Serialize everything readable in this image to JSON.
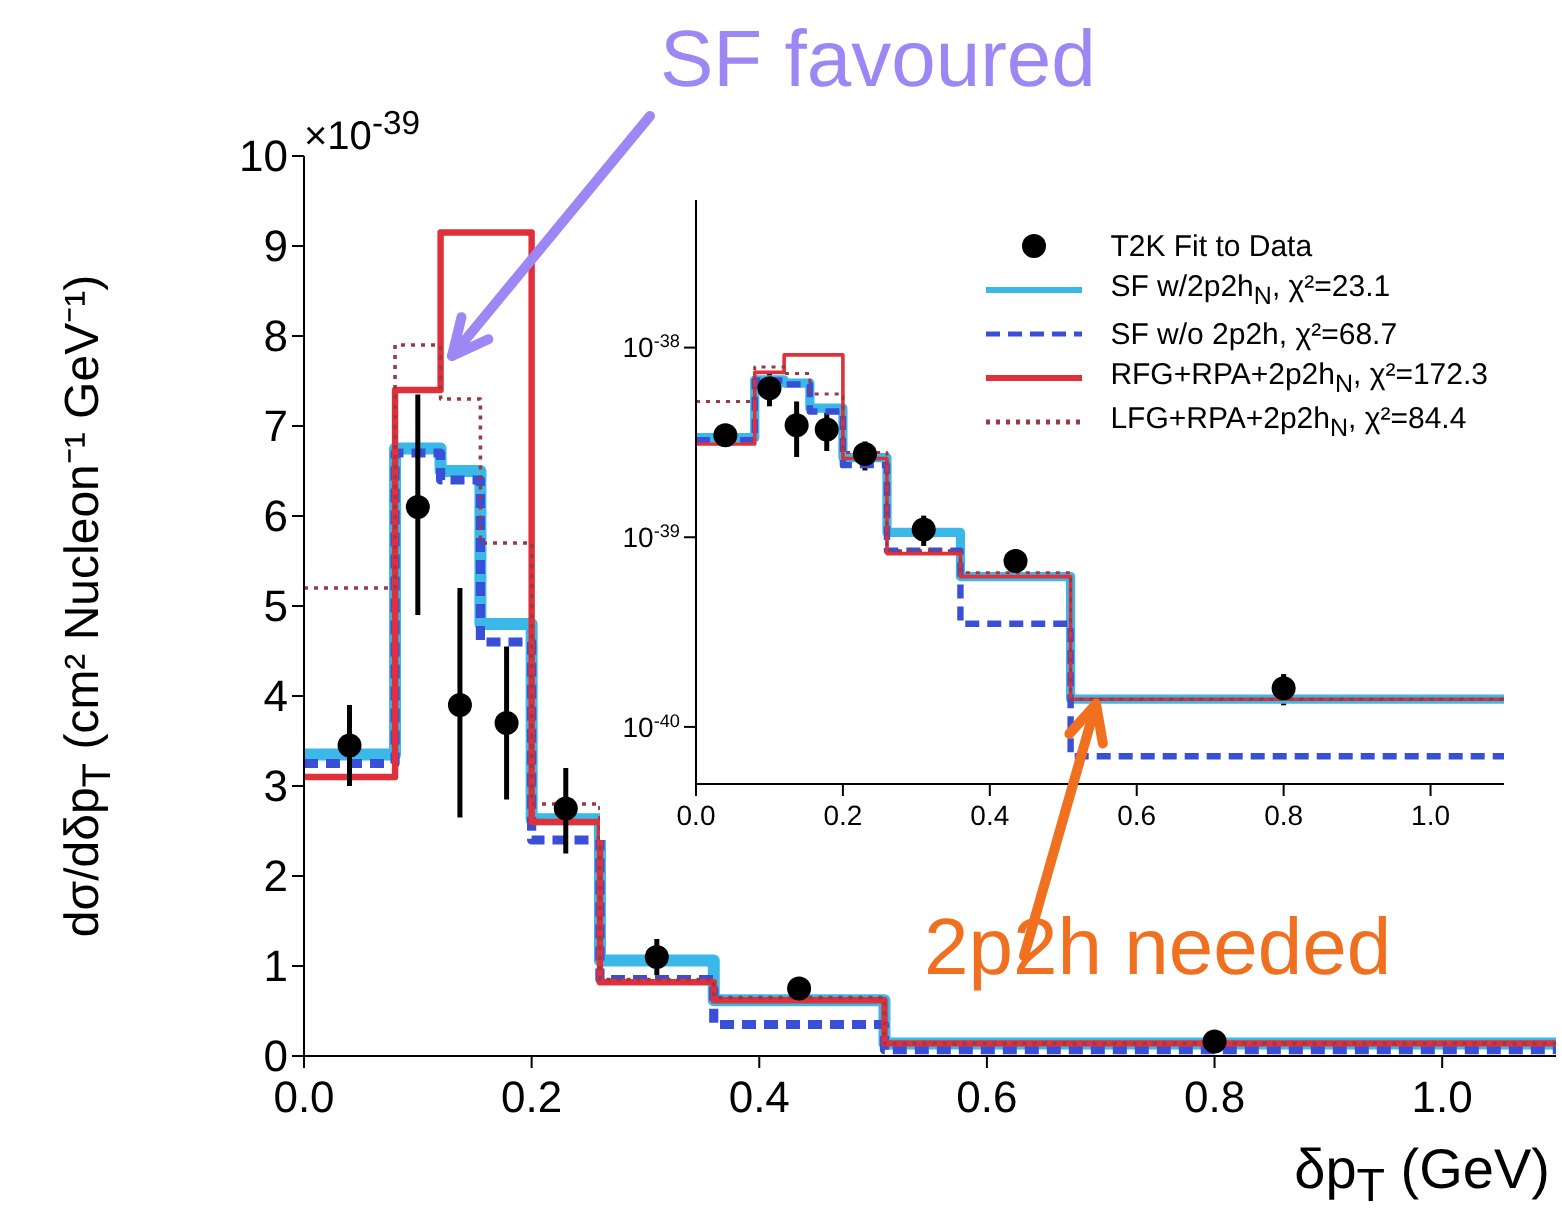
{
  "chart_data": [
    {
      "type": "step",
      "xlabel": "δp$_{T}$ (GeV)",
      "ylabel": "dσ/dδp$_{T}$ (cm² Nucleon⁻¹ GeV⁻¹)",
      "xlim": [
        0,
        1.1
      ],
      "xticks": [
        {
          "value": 0,
          "label": "0.0"
        },
        {
          "value": 0.2,
          "label": "0.2"
        },
        {
          "value": 0.4,
          "label": "0.4"
        },
        {
          "value": 0.6,
          "label": "0.6"
        },
        {
          "value": 0.8,
          "label": "0.8"
        },
        {
          "value": 1.0,
          "label": "1.0"
        }
      ],
      "ylim": [
        0,
        10
      ],
      "yticks": [
        0,
        1,
        2,
        3,
        4,
        5,
        6,
        7,
        8,
        9,
        10
      ],
      "annotations": [
        "×10$^{-39}$",
        "SF favoured",
        "2p2h needed"
      ],
      "series": [
        {
          "color": "#3ab8e8",
          "line_style": "solid",
          "x": [
            0,
            0.08,
            0.12,
            0.155,
            0.2,
            0.26,
            0.36,
            0.51,
            1.1
          ],
          "values": [
            3.35,
            6.75,
            6.5,
            4.8,
            2.63,
            1.06,
            0.62,
            0.14,
            0.14
          ]
        },
        {
          "color": "#3a4fd8",
          "line_style": "dashed",
          "x": [
            0,
            0.08,
            0.12,
            0.155,
            0.2,
            0.26,
            0.36,
            0.51,
            1.1
          ],
          "values": [
            3.25,
            6.7,
            6.4,
            4.6,
            2.4,
            0.85,
            0.35,
            0.07,
            0.07
          ]
        },
        {
          "color": "#e0303a",
          "line_style": "solid",
          "x": [
            0,
            0.08,
            0.12,
            0.155,
            0.2,
            0.26,
            0.36,
            0.51,
            1.1
          ],
          "values": [
            3.1,
            7.4,
            9.15,
            9.15,
            2.6,
            0.82,
            0.62,
            0.14,
            0.14
          ]
        },
        {
          "color": "#9a3a44",
          "line_style": "dotted",
          "x": [
            0,
            0.08,
            0.12,
            0.155,
            0.2,
            0.26,
            0.36,
            0.51,
            1.1
          ],
          "values": [
            5.2,
            7.9,
            7.3,
            5.7,
            2.8,
            0.85,
            0.65,
            0.14,
            0.14
          ]
        },
        {
          "type": "scatter",
          "color": "#000000",
          "marker": "circle",
          "x": [
            0.04,
            0.1,
            0.137,
            0.178,
            0.23,
            0.31,
            0.435,
            0.8
          ],
          "values": [
            3.45,
            6.1,
            3.9,
            3.7,
            2.75,
            1.1,
            0.75,
            0.16
          ],
          "errors": [
            [
              3.0,
              3.9
            ],
            [
              4.9,
              7.35
            ],
            [
              2.65,
              5.2
            ],
            [
              2.85,
              4.55
            ],
            [
              2.25,
              3.2
            ],
            [
              0.9,
              1.3
            ],
            [
              0.65,
              0.85
            ],
            [
              0.11,
              0.21
            ]
          ]
        }
      ]
    },
    {
      "type": "step",
      "log": true,
      "legend": "top right",
      "xlim": [
        0,
        1.1
      ],
      "xticks": [
        {
          "value": 0,
          "label": "0.0"
        },
        {
          "value": 0.2,
          "label": "0.2"
        },
        {
          "value": 0.4,
          "label": "0.4"
        },
        {
          "value": 0.6,
          "label": "0.6"
        },
        {
          "value": 0.8,
          "label": "0.8"
        },
        {
          "value": 1.0,
          "label": "1.0"
        }
      ],
      "ylim": [
        5e-41,
        6e-38
      ],
      "yticks": [
        {
          "value": 1e-40,
          "label": "10$^{-40}$"
        },
        {
          "value": 1e-39,
          "label": "10$^{-39}$"
        },
        {
          "value": 1e-38,
          "label": "10$^{-38}$"
        }
      ],
      "series": [
        {
          "type": "scatter",
          "name": "T2K Fit to Data",
          "color": "#000000",
          "marker": "circle",
          "x": [
            0.04,
            0.1,
            0.137,
            0.178,
            0.23,
            0.31,
            0.435,
            0.8
          ],
          "values": [
            3.45e-39,
            6.1e-39,
            3.9e-39,
            3.7e-39,
            2.75e-39,
            1.1e-39,
            7.5e-40,
            1.6e-40
          ],
          "errors": [
            [
              3e-39,
              3.9e-39
            ],
            [
              4.9e-39,
              7.35e-39
            ],
            [
              2.65e-39,
              5.2e-39
            ],
            [
              2.85e-39,
              4.55e-39
            ],
            [
              2.25e-39,
              3.2e-39
            ],
            [
              9e-40,
              1.3e-39
            ],
            [
              6.5e-40,
              8.5e-40
            ],
            [
              1.3e-40,
              1.9e-40
            ]
          ]
        },
        {
          "name": "SF w/2p2h$_{N}$, χ²=23.1",
          "color": "#3ab8e8",
          "line_style": "solid",
          "x": [
            0,
            0.08,
            0.12,
            0.155,
            0.2,
            0.26,
            0.36,
            0.51,
            1.1
          ],
          "values": [
            3.35e-39,
            6.75e-39,
            6.5e-39,
            4.8e-39,
            2.63e-39,
            1.06e-39,
            6.2e-40,
            1.4e-40,
            1.4e-40
          ]
        },
        {
          "name": "SF w/o 2p2h, χ²=68.7",
          "color": "#3a4fd8",
          "line_style": "dashed",
          "x": [
            0,
            0.08,
            0.12,
            0.155,
            0.2,
            0.26,
            0.36,
            0.51,
            1.1
          ],
          "values": [
            3.25e-39,
            6.7e-39,
            6.4e-39,
            4.6e-39,
            2.4e-39,
            8.5e-40,
            3.5e-40,
            7e-41,
            7e-41
          ]
        },
        {
          "name": "RFG+RPA+2p2h$_{N}$, χ²=172.3",
          "color": "#e0303a",
          "line_style": "solid",
          "x": [
            0,
            0.08,
            0.12,
            0.155,
            0.2,
            0.26,
            0.36,
            0.51,
            1.1
          ],
          "values": [
            3.1e-39,
            7.4e-39,
            9.15e-39,
            9.15e-39,
            2.6e-39,
            8.2e-40,
            6.2e-40,
            1.4e-40,
            1.4e-40
          ]
        },
        {
          "name": "LFG+RPA+2p2h$_{N}$, χ²=84.4",
          "color": "#9a3a44",
          "line_style": "dotted",
          "x": [
            0,
            0.08,
            0.12,
            0.155,
            0.2,
            0.26,
            0.36,
            0.51,
            1.1
          ],
          "values": [
            5.2e-39,
            7.9e-39,
            7.3e-39,
            5.7e-39,
            2.8e-39,
            8.5e-40,
            6.5e-40,
            1.4e-40,
            1.4e-40
          ]
        }
      ]
    }
  ]
}
